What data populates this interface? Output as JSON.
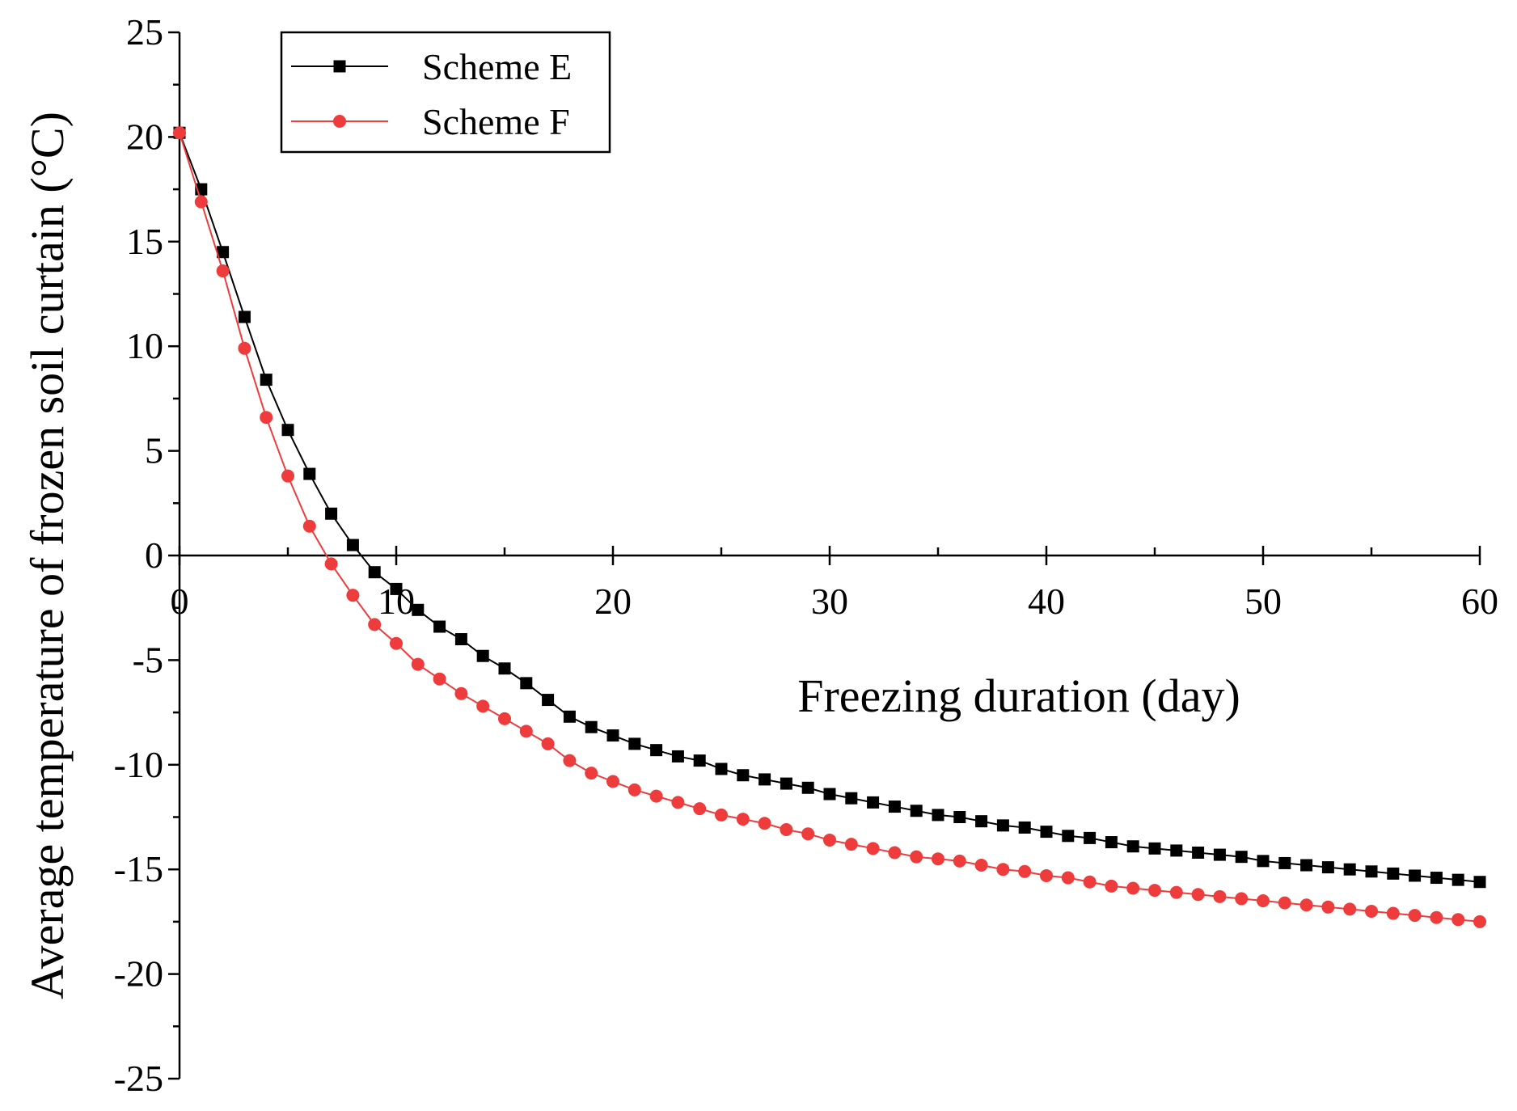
{
  "chart_data": {
    "type": "line",
    "title": "",
    "xlabel": "Freezing duration (day)",
    "ylabel": "Average temperature of frozen soil curtain (°C)",
    "xlim": [
      0,
      60
    ],
    "ylim": [
      -25,
      25
    ],
    "x_ticks": [
      0,
      10,
      20,
      30,
      40,
      50,
      60
    ],
    "y_ticks": [
      25,
      20,
      15,
      10,
      5,
      0,
      -5,
      -10,
      -15,
      -20,
      -25
    ],
    "grid": false,
    "legend_position": "top-left",
    "x": [
      0,
      1,
      2,
      3,
      4,
      5,
      6,
      7,
      8,
      9,
      10,
      11,
      12,
      13,
      14,
      15,
      16,
      17,
      18,
      19,
      20,
      21,
      22,
      23,
      24,
      25,
      26,
      27,
      28,
      29,
      30,
      31,
      32,
      33,
      34,
      35,
      36,
      37,
      38,
      39,
      40,
      41,
      42,
      43,
      44,
      45,
      46,
      47,
      48,
      49,
      50,
      51,
      52,
      53,
      54,
      55,
      56,
      57,
      58,
      59,
      60
    ],
    "series": [
      {
        "name": "Scheme E",
        "color": "#000000",
        "marker": "square",
        "values": [
          20.2,
          17.5,
          14.5,
          11.4,
          8.4,
          6.0,
          3.9,
          2.0,
          0.5,
          -0.8,
          -1.6,
          -2.6,
          -3.4,
          -4.0,
          -4.8,
          -5.4,
          -6.1,
          -6.9,
          -7.7,
          -8.2,
          -8.6,
          -9.0,
          -9.3,
          -9.6,
          -9.8,
          -10.2,
          -10.5,
          -10.7,
          -10.9,
          -11.1,
          -11.4,
          -11.6,
          -11.8,
          -12.0,
          -12.2,
          -12.4,
          -12.5,
          -12.7,
          -12.9,
          -13.0,
          -13.2,
          -13.4,
          -13.5,
          -13.7,
          -13.9,
          -14.0,
          -14.1,
          -14.2,
          -14.3,
          -14.4,
          -14.6,
          -14.7,
          -14.8,
          -14.9,
          -15.0,
          -15.1,
          -15.2,
          -15.3,
          -15.4,
          -15.5,
          -15.6
        ]
      },
      {
        "name": "Scheme F",
        "color": "#ee3b3b",
        "marker": "circle",
        "values": [
          20.2,
          16.9,
          13.6,
          9.9,
          6.6,
          3.8,
          1.4,
          -0.4,
          -1.9,
          -3.3,
          -4.2,
          -5.2,
          -5.9,
          -6.6,
          -7.2,
          -7.8,
          -8.4,
          -9.0,
          -9.8,
          -10.4,
          -10.8,
          -11.2,
          -11.5,
          -11.8,
          -12.1,
          -12.4,
          -12.6,
          -12.8,
          -13.1,
          -13.3,
          -13.6,
          -13.8,
          -14.0,
          -14.2,
          -14.4,
          -14.5,
          -14.6,
          -14.8,
          -15.0,
          -15.1,
          -15.3,
          -15.4,
          -15.6,
          -15.8,
          -15.9,
          -16.0,
          -16.1,
          -16.2,
          -16.3,
          -16.4,
          -16.5,
          -16.6,
          -16.7,
          -16.8,
          -16.9,
          -17.0,
          -17.1,
          -17.2,
          -17.3,
          -17.4,
          -17.5
        ]
      }
    ]
  }
}
